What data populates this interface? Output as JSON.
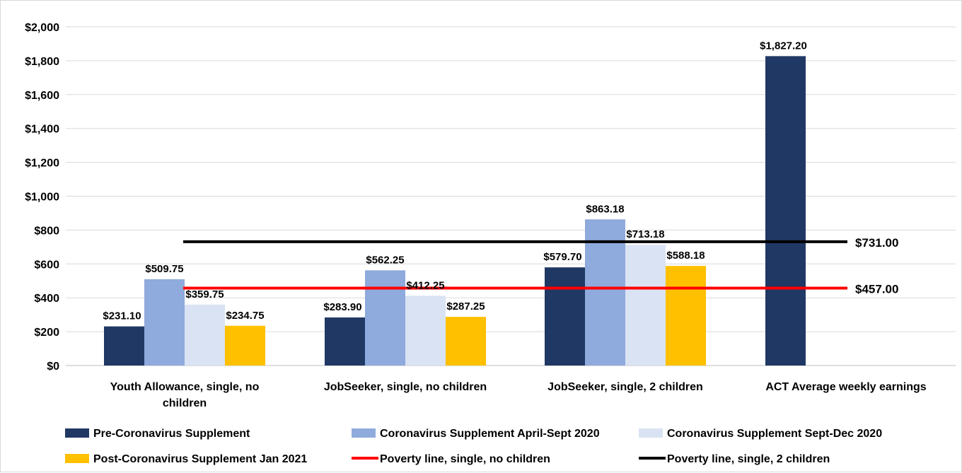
{
  "chart_data": {
    "type": "bar",
    "title": "",
    "xlabel": "",
    "ylabel": "",
    "ylim": [
      0,
      2000
    ],
    "yticks": [
      0,
      200,
      400,
      600,
      800,
      1000,
      1200,
      1400,
      1600,
      1800,
      2000
    ],
    "ytick_labels": [
      "$0",
      "$200",
      "$400",
      "$600",
      "$800",
      "$1,000",
      "$1,200",
      "$1,400",
      "$1,600",
      "$1,800",
      "$2,000"
    ],
    "grid": true,
    "legend_position": "bottom",
    "categories": [
      "Youth Allowance, single, no children",
      "JobSeeker, single, no children",
      "JobSeeker, single, 2 children",
      "ACT Average weekly earnings"
    ],
    "category_label_lines": [
      [
        "Youth Allowance, single, no",
        "children"
      ],
      [
        "JobSeeker, single, no children"
      ],
      [
        "JobSeeker, single, 2 children"
      ],
      [
        "ACT Average weekly earnings"
      ]
    ],
    "series": [
      {
        "name": "Pre-Coronavirus Supplement",
        "color": "#203864",
        "values": [
          231.1,
          283.9,
          579.7,
          1827.2
        ],
        "labels": [
          "$231.10",
          "$283.90",
          "$579.70",
          "$1,827.20"
        ]
      },
      {
        "name": "Coronavirus Supplement April-Sept 2020",
        "color": "#8FAADC",
        "values": [
          509.75,
          562.25,
          863.18,
          null
        ],
        "labels": [
          "$509.75",
          "$562.25",
          "$863.18",
          ""
        ]
      },
      {
        "name": "Coronavirus Supplement Sept-Dec 2020",
        "color": "#DAE3F3",
        "values": [
          359.75,
          412.25,
          713.18,
          null
        ],
        "labels": [
          "$359.75",
          "$412.25",
          "$713.18",
          ""
        ]
      },
      {
        "name": "Post-Coronavirus Supplement Jan 2021",
        "color": "#FFC000",
        "values": [
          234.75,
          287.25,
          588.18,
          null
        ],
        "labels": [
          "$234.75",
          "$287.25",
          "$588.18",
          ""
        ]
      }
    ],
    "lines": [
      {
        "name": "Poverty line, single, no children",
        "color": "#FF0000",
        "value": 457.0,
        "label": "$457.00"
      },
      {
        "name": "Poverty line, single, 2 children",
        "color": "#000000",
        "value": 731.0,
        "label": "$731.00"
      }
    ]
  }
}
